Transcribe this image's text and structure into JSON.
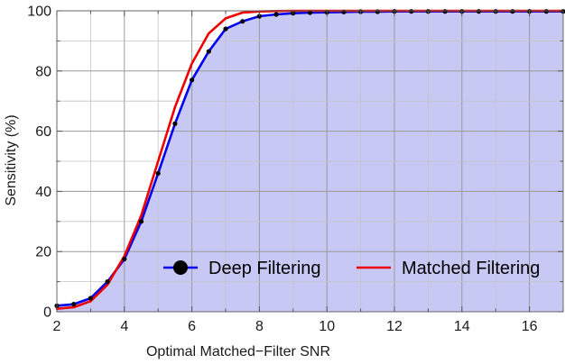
{
  "chart_data": {
    "type": "line",
    "title": "",
    "xlabel": "Optimal Matched−Filter SNR",
    "ylabel": "Sensitivity (%)",
    "xlim": [
      2,
      17
    ],
    "ylim": [
      0,
      100
    ],
    "x_ticks": [
      2,
      4,
      6,
      8,
      10,
      12,
      14,
      16
    ],
    "x_tick_labels": [
      "2",
      "4",
      "6",
      "8",
      "10",
      "12",
      "14",
      "16"
    ],
    "y_ticks": [
      0,
      20,
      40,
      60,
      80,
      100
    ],
    "y_tick_labels": [
      "0",
      "20",
      "40",
      "60",
      "80",
      "100"
    ],
    "grid": true,
    "legend_position": "bottom-right",
    "series": [
      {
        "name": "Deep Filtering",
        "color": "#0000ee",
        "marker": "dot",
        "marker_color": "#000000",
        "fill_below": true,
        "fill_color": "#c8c8f5",
        "x": [
          2,
          2.5,
          3,
          3.5,
          4,
          4.5,
          5,
          5.5,
          6,
          6.5,
          7,
          7.5,
          8,
          8.5,
          9,
          9.5,
          10,
          10.5,
          11,
          11.5,
          12,
          12.5,
          13,
          13.5,
          14,
          14.5,
          15,
          15.5,
          16,
          16.5,
          17
        ],
        "y": [
          2,
          2.5,
          4.5,
          10,
          17.5,
          30,
          46,
          62.5,
          77,
          86.5,
          94,
          96.5,
          98.2,
          98.8,
          99.2,
          99.4,
          99.5,
          99.6,
          99.7,
          99.7,
          99.8,
          99.8,
          99.8,
          99.8,
          99.8,
          99.8,
          99.8,
          99.8,
          99.8,
          99.8,
          99.8
        ]
      },
      {
        "name": "Matched Filtering",
        "color": "#ee0000",
        "marker": "none",
        "x": [
          2,
          2.5,
          3,
          3.5,
          4,
          4.5,
          5,
          5.5,
          6,
          6.5,
          7,
          7.5,
          8,
          8.5,
          9,
          10,
          11,
          12,
          13,
          14,
          15,
          16,
          17
        ],
        "y": [
          1,
          1.5,
          3.5,
          9,
          18.5,
          32,
          50,
          68,
          82.5,
          92.5,
          97.5,
          99.4,
          99.8,
          99.9,
          100,
          100,
          100,
          100,
          100,
          100,
          100,
          100,
          100
        ]
      }
    ]
  }
}
